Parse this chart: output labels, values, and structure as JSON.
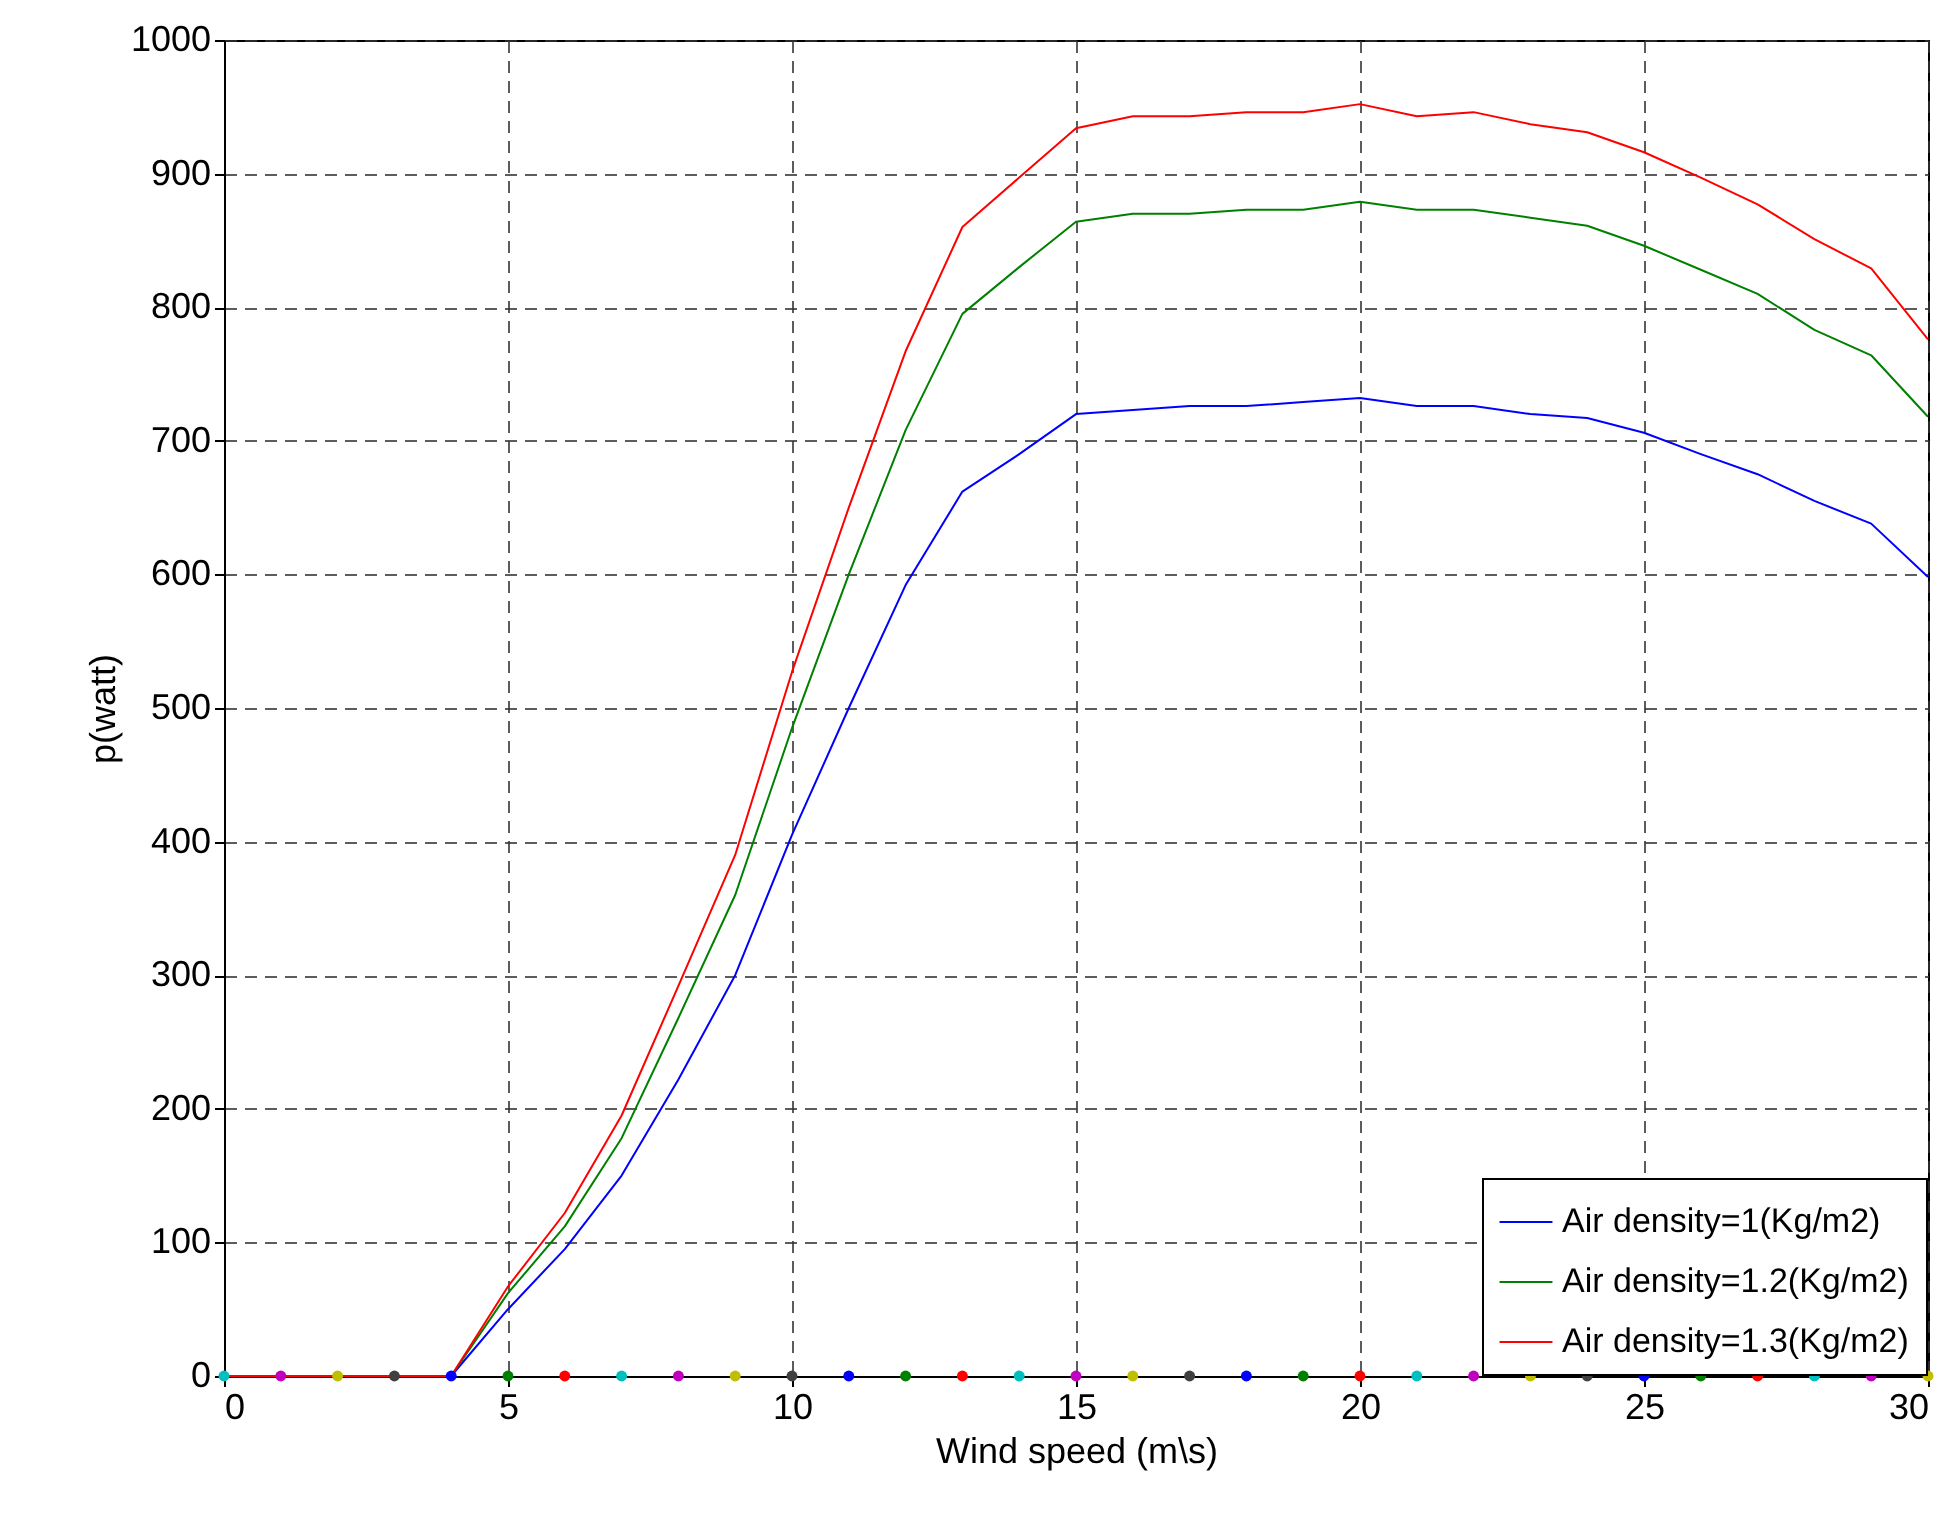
{
  "chart_data": {
    "type": "line",
    "xlabel": "Wind speed (m\\s)",
    "ylabel": "p(watt)",
    "x": [
      0,
      1,
      2,
      3,
      4,
      5,
      6,
      7,
      8,
      9,
      10,
      11,
      12,
      13,
      14,
      15,
      16,
      17,
      18,
      19,
      20,
      21,
      22,
      23,
      24,
      25,
      26,
      27,
      28,
      29,
      30
    ],
    "series": [
      {
        "name": "Air density=1(Kg/m2)",
        "color": "#0000ff",
        "values": [
          null,
          null,
          null,
          null,
          0,
          50,
          95,
          150,
          222,
          300,
          405,
          500,
          592,
          662,
          690,
          720,
          723,
          726,
          726,
          729,
          732,
          726,
          726,
          720,
          717,
          706,
          690,
          675,
          655,
          638,
          598
        ]
      },
      {
        "name": "Air density=1.2(Kg/m2)",
        "color": "#008000",
        "values": [
          null,
          null,
          null,
          null,
          0,
          62,
          112,
          178,
          268,
          360,
          485,
          600,
          708,
          795,
          830,
          864,
          870,
          870,
          873,
          873,
          879,
          873,
          873,
          867,
          861,
          846,
          828,
          810,
          783,
          764,
          718
        ]
      },
      {
        "name": "Air density=1.3(Kg/m2)",
        "color": "#ff0000",
        "values": [
          0,
          0,
          0,
          0,
          0,
          67,
          122,
          195,
          292,
          390,
          527,
          650,
          767,
          860,
          897,
          934,
          943,
          943,
          946,
          946,
          952,
          943,
          946,
          937,
          931,
          916,
          897,
          877,
          851,
          829,
          776
        ]
      },
      {
        "type": "scatter",
        "marker": "circle",
        "colors": [
          "#00bfbf",
          "#bf00bf",
          "#bfbf00",
          "#404040",
          "#0000ff",
          "#008000",
          "#ff0000",
          "#00bfbf",
          "#bf00bf",
          "#bfbf00",
          "#404040",
          "#0000ff",
          "#008000",
          "#ff0000",
          "#00bfbf",
          "#bf00bf",
          "#bfbf00",
          "#404040",
          "#0000ff",
          "#008000",
          "#ff0000",
          "#00bfbf",
          "#bf00bf",
          "#bfbf00",
          "#404040",
          "#0000ff",
          "#008000",
          "#ff0000",
          "#00bfbf",
          "#bf00bf",
          "#bfbf00"
        ],
        "values": [
          0,
          0,
          0,
          0,
          0,
          0,
          0,
          0,
          0,
          0,
          0,
          0,
          0,
          0,
          0,
          0,
          0,
          0,
          0,
          0,
          0,
          0,
          0,
          0,
          0,
          0,
          0,
          0,
          0,
          0,
          0
        ]
      }
    ],
    "xlim": [
      0,
      30
    ],
    "xticks": [
      0,
      5,
      10,
      15,
      20,
      25,
      30
    ],
    "ylim": [
      0,
      1000
    ],
    "yticks": [
      0,
      100,
      200,
      300,
      400,
      500,
      600,
      700,
      800,
      900,
      1000
    ],
    "grid": true,
    "legend": "bottom right",
    "line_style": "solid"
  }
}
